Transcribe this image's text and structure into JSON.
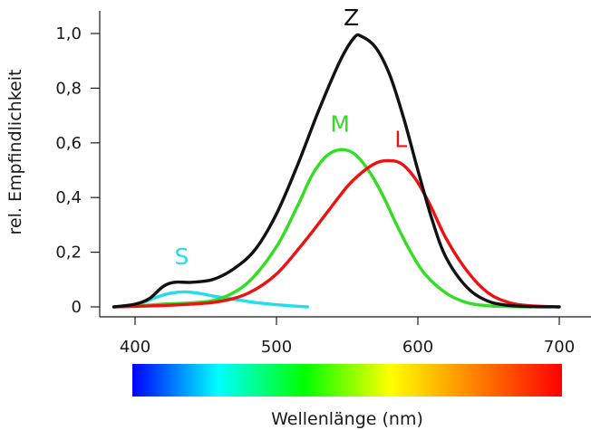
{
  "chart_data": {
    "type": "line",
    "title": "",
    "xlabel": "Wellenlänge (nm)",
    "ylabel": "rel. Empfindlichkeit",
    "xlim": [
      380,
      705
    ],
    "ylim": [
      0,
      1.08
    ],
    "x_ticks": [
      {
        "value": 400,
        "label": "400"
      },
      {
        "value": 500,
        "label": "500"
      },
      {
        "value": 600,
        "label": "600"
      },
      {
        "value": 700,
        "label": "700"
      }
    ],
    "y_ticks": [
      {
        "value": 0,
        "label": "0"
      },
      {
        "value": 0.2,
        "label": "0,2"
      },
      {
        "value": 0.4,
        "label": "0,4"
      },
      {
        "value": 0.6,
        "label": "0,6"
      },
      {
        "value": 0.8,
        "label": "0,8"
      },
      {
        "value": 1.0,
        "label": "1,0"
      }
    ],
    "grid": false,
    "legend": "none",
    "spectrum_bar": {
      "x_range": [
        400,
        700
      ],
      "colors": [
        "#0000ff",
        "#00ffff",
        "#00ff00",
        "#ffff00",
        "#ff8000",
        "#ff0000"
      ]
    },
    "series": [
      {
        "name": "S",
        "color": "#22ddee",
        "label_at": [
          433,
          0.155
        ],
        "points": [
          [
            385,
            0.0
          ],
          [
            395,
            0.005
          ],
          [
            405,
            0.015
          ],
          [
            415,
            0.035
          ],
          [
            425,
            0.05
          ],
          [
            435,
            0.055
          ],
          [
            445,
            0.05
          ],
          [
            455,
            0.04
          ],
          [
            470,
            0.028
          ],
          [
            485,
            0.016
          ],
          [
            500,
            0.008
          ],
          [
            510,
            0.004
          ],
          [
            522,
            0.0
          ]
        ]
      },
      {
        "name": "M",
        "color": "#33dd22",
        "label_at": [
          545,
          0.64
        ],
        "points": [
          [
            385,
            0.0
          ],
          [
            400,
            0.003
          ],
          [
            420,
            0.01
          ],
          [
            440,
            0.015
          ],
          [
            460,
            0.03
          ],
          [
            480,
            0.09
          ],
          [
            500,
            0.22
          ],
          [
            515,
            0.37
          ],
          [
            525,
            0.48
          ],
          [
            535,
            0.55
          ],
          [
            545,
            0.575
          ],
          [
            555,
            0.56
          ],
          [
            565,
            0.5
          ],
          [
            575,
            0.41
          ],
          [
            585,
            0.3
          ],
          [
            595,
            0.2
          ],
          [
            605,
            0.12
          ],
          [
            620,
            0.05
          ],
          [
            635,
            0.015
          ],
          [
            650,
            0.004
          ],
          [
            665,
            0.001
          ],
          [
            680,
            0.0
          ]
        ]
      },
      {
        "name": "L",
        "color": "#ee1111",
        "label_at": [
          588,
          0.585
        ],
        "points": [
          [
            385,
            0.0
          ],
          [
            400,
            0.002
          ],
          [
            420,
            0.005
          ],
          [
            440,
            0.01
          ],
          [
            460,
            0.02
          ],
          [
            480,
            0.05
          ],
          [
            500,
            0.12
          ],
          [
            520,
            0.24
          ],
          [
            535,
            0.34
          ],
          [
            550,
            0.44
          ],
          [
            560,
            0.49
          ],
          [
            570,
            0.525
          ],
          [
            578,
            0.535
          ],
          [
            588,
            0.525
          ],
          [
            598,
            0.47
          ],
          [
            608,
            0.38
          ],
          [
            620,
            0.25
          ],
          [
            635,
            0.13
          ],
          [
            650,
            0.05
          ],
          [
            665,
            0.015
          ],
          [
            680,
            0.004
          ],
          [
            700,
            0.0
          ]
        ]
      },
      {
        "name": "Z",
        "color": "#111111",
        "label_at": [
          553,
          1.03
        ],
        "points": [
          [
            385,
            0.0
          ],
          [
            400,
            0.01
          ],
          [
            410,
            0.03
          ],
          [
            420,
            0.075
          ],
          [
            428,
            0.09
          ],
          [
            440,
            0.09
          ],
          [
            455,
            0.1
          ],
          [
            470,
            0.14
          ],
          [
            485,
            0.21
          ],
          [
            500,
            0.34
          ],
          [
            515,
            0.52
          ],
          [
            530,
            0.72
          ],
          [
            545,
            0.9
          ],
          [
            555,
            0.985
          ],
          [
            560,
            0.99
          ],
          [
            570,
            0.95
          ],
          [
            580,
            0.85
          ],
          [
            590,
            0.69
          ],
          [
            600,
            0.5
          ],
          [
            610,
            0.32
          ],
          [
            620,
            0.18
          ],
          [
            635,
            0.07
          ],
          [
            650,
            0.02
          ],
          [
            665,
            0.005
          ],
          [
            680,
            0.001
          ],
          [
            700,
            0.0
          ]
        ]
      }
    ]
  }
}
